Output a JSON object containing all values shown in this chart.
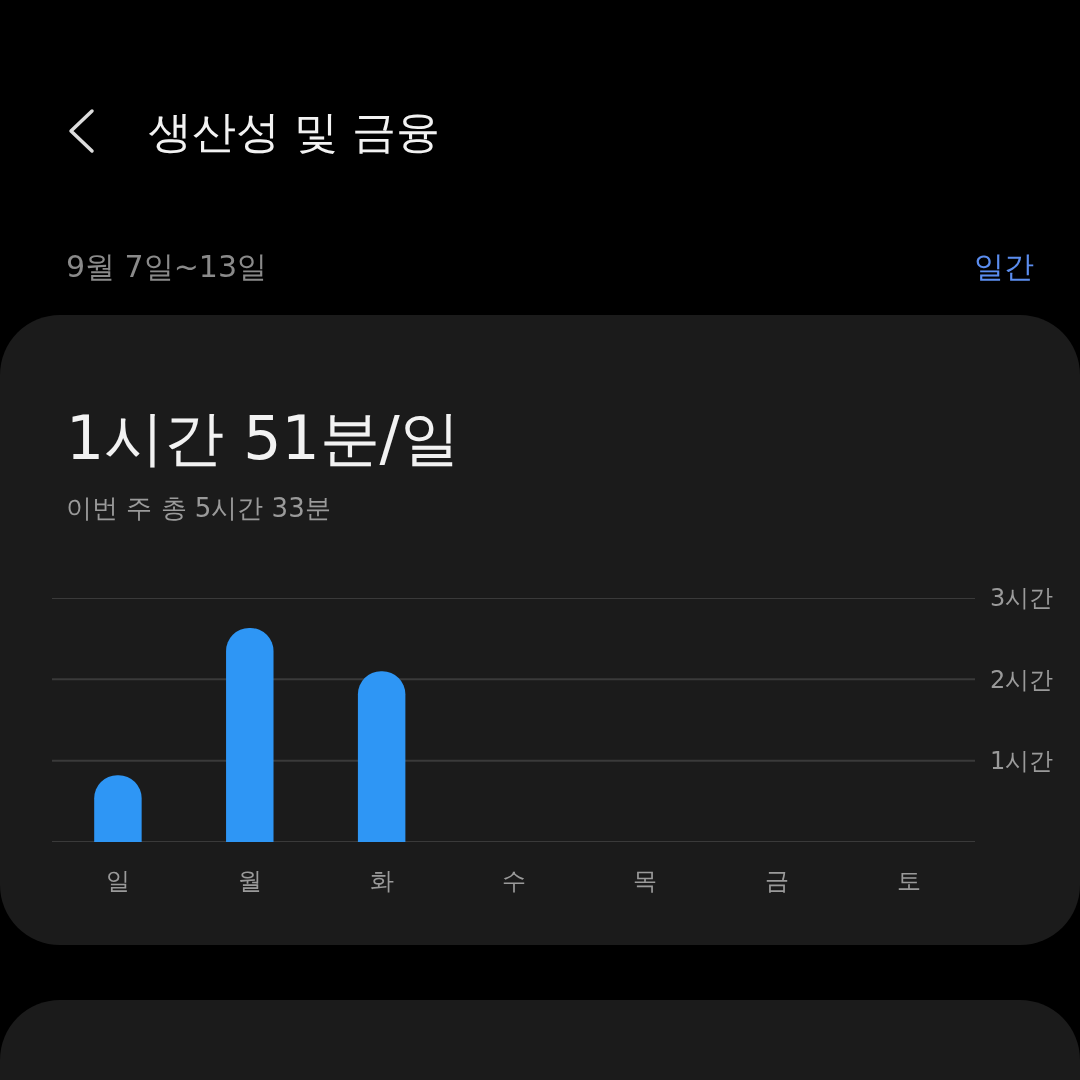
{
  "chart_data": {
    "type": "bar",
    "title": "생산성 및 금융",
    "subtitle": "9월 7일~13일",
    "annotations": [
      "일간",
      "1시간 51분/일",
      "이번 주 총 5시간 33분"
    ],
    "categories": [
      "일",
      "월",
      "화",
      "수",
      "목",
      "금",
      "토"
    ],
    "values": [
      0.82,
      2.63,
      2.1,
      null,
      null,
      null,
      null
    ],
    "color": "#2e96f5",
    "ylim": [
      0,
      3
    ],
    "yticks": [
      {
        "value": 0,
        "label": null
      },
      {
        "value": 1,
        "label": "1시간"
      },
      {
        "value": 2,
        "label": "2시간"
      },
      {
        "value": 3,
        "label": "3시간"
      }
    ],
    "grid": "y",
    "legend": false
  }
}
